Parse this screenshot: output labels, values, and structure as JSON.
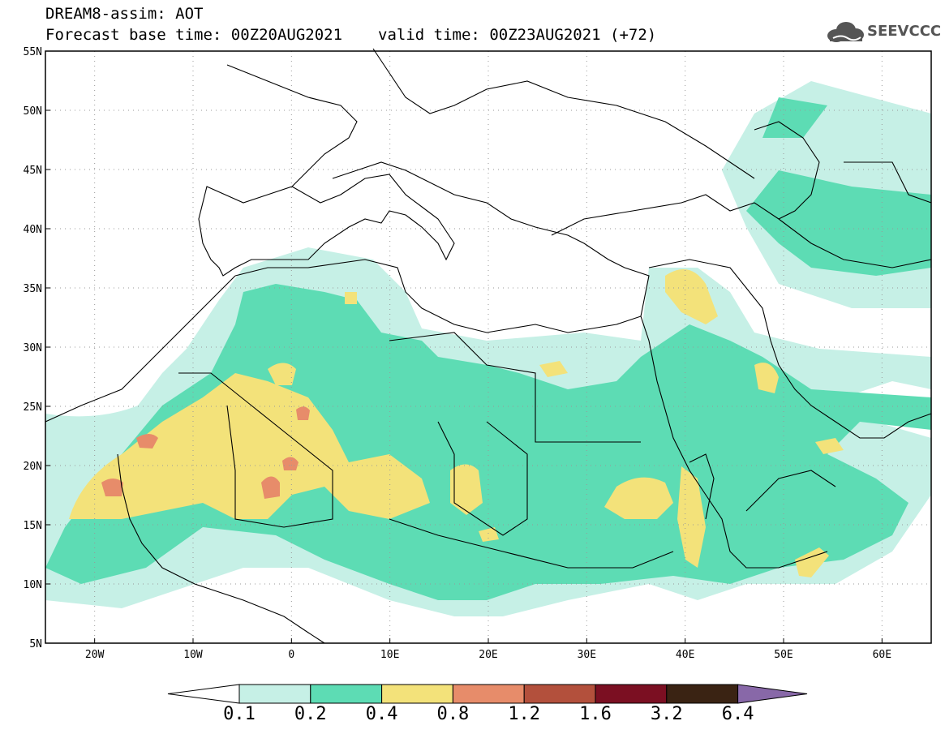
{
  "header": {
    "title_line1": "DREAM8-assim: AOT",
    "forecast_base": "Forecast base time: 00Z20AUG2021",
    "valid_time": "valid time: 00Z23AUG2021 (+72)"
  },
  "logo": {
    "text": "SEEVCCC",
    "icon": "cloud-icon"
  },
  "map": {
    "lon_range": [
      -25,
      65
    ],
    "lat_range": [
      5,
      55
    ],
    "lat_labels": [
      "55N",
      "50N",
      "45N",
      "40N",
      "35N",
      "30N",
      "25N",
      "20N",
      "15N",
      "10N",
      "5N"
    ],
    "lat_values": [
      55,
      50,
      45,
      40,
      35,
      30,
      25,
      20,
      15,
      10,
      5
    ],
    "lon_labels": [
      "20W",
      "10W",
      "0",
      "10E",
      "20E",
      "30E",
      "40E",
      "50E",
      "60E"
    ],
    "lon_values": [
      -20,
      -10,
      0,
      10,
      20,
      30,
      40,
      50,
      60
    ]
  },
  "colorbar": {
    "labels": [
      "0.1",
      "0.2",
      "0.4",
      "0.8",
      "1.2",
      "1.6",
      "3.2",
      "6.4"
    ],
    "colors": [
      "#ffffff",
      "#c6f0e6",
      "#5ddcb4",
      "#f3e27a",
      "#e78c6a",
      "#b3503c",
      "#7b0f22",
      "#3a2313",
      "#8868a8"
    ]
  }
}
